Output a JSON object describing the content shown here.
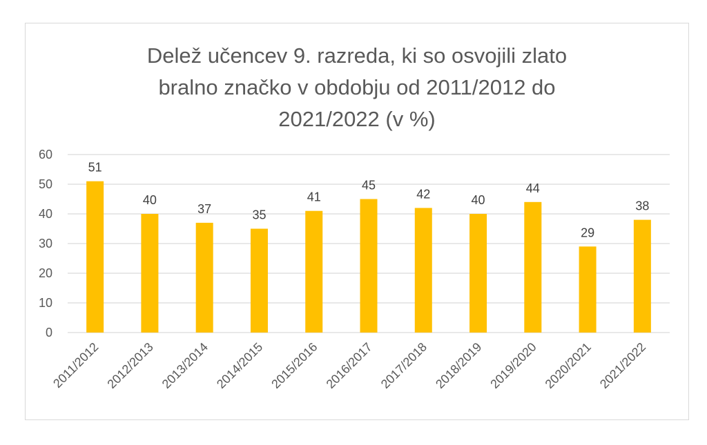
{
  "chart_data": {
    "type": "bar",
    "title_lines": [
      "Delež učencev 9. razreda, ki so osvojili zlato",
      "bralno značko v obdobju od 2011/2012 do",
      "2021/2022 (v %)"
    ],
    "categories": [
      "2011/2012",
      "2012/2013",
      "2013/2014",
      "2014/2015",
      "2015/2016",
      "2016/2017",
      "2017/2018",
      "2018/2019",
      "2019/2020",
      "2020/2021",
      "2021/2022"
    ],
    "values": [
      51,
      40,
      37,
      35,
      41,
      45,
      42,
      40,
      44,
      29,
      38
    ],
    "ylim": [
      0,
      60
    ],
    "yticks": [
      0,
      10,
      20,
      30,
      40,
      50,
      60
    ],
    "grid": true,
    "legend": "none",
    "bar_color": "#FFC000",
    "grid_color": "#d9d9d9",
    "xlabel": "",
    "ylabel": ""
  }
}
